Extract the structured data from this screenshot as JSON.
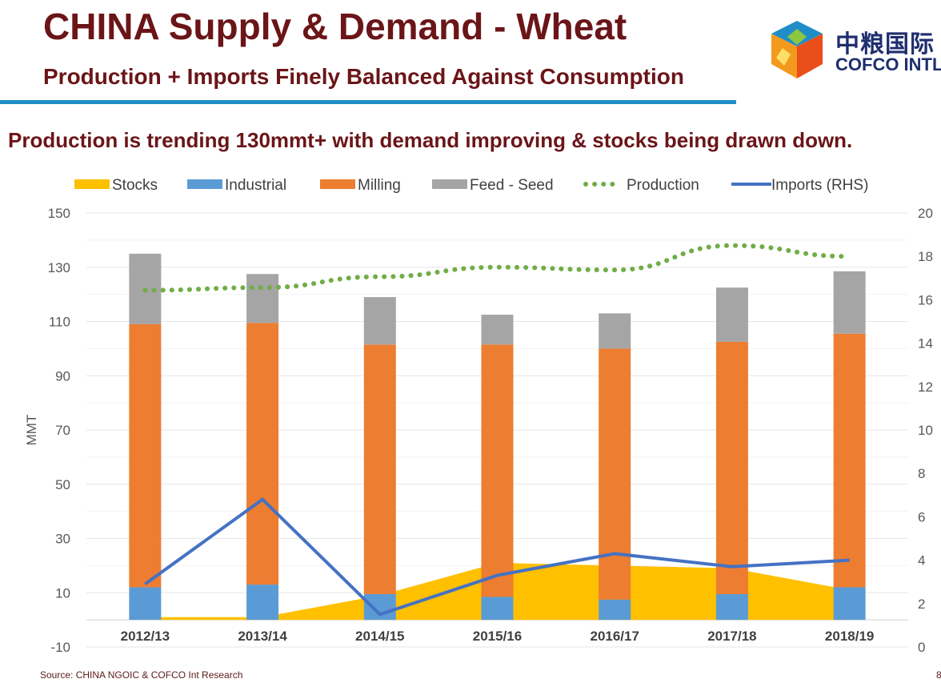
{
  "header": {
    "title": "CHINA Supply & Demand - Wheat",
    "subtitle": "Production + Imports Finely Balanced Against Consumption",
    "logo_cn": "中粮国际",
    "logo_en": "COFCO INTL"
  },
  "headline": "Production is trending 130mmt+ with demand improving & stocks being drawn down.",
  "footer": {
    "source": "Source: CHINA NGOIC & COFCO Int Research",
    "page": "8"
  },
  "colors": {
    "title": "#6b1518",
    "rule": "#1f8ec8",
    "stocks": "#ffc000",
    "industrial": "#5b9bd5",
    "milling": "#ed7d31",
    "feed_seed": "#a5a5a5",
    "production": "#70ad47",
    "imports": "#4472c4"
  },
  "chart_data": {
    "type": "bar",
    "subtype": "stacked-bar with area, dotted line and secondary-axis line",
    "categories": [
      "2012/13",
      "2013/14",
      "2014/15",
      "2015/16",
      "2016/17",
      "2017/18",
      "2018/19"
    ],
    "ylabel": "MMT",
    "ylim": [
      -10,
      150
    ],
    "yticks": [
      -10,
      10,
      30,
      50,
      70,
      90,
      110,
      130,
      150
    ],
    "y2lim": [
      0,
      20
    ],
    "y2ticks": [
      0,
      2,
      4,
      6,
      8,
      10,
      12,
      14,
      16,
      18,
      20
    ],
    "legend_position": "top",
    "gridlines": true,
    "series": [
      {
        "name": "Stocks",
        "kind": "area",
        "axis": "left",
        "values": [
          1,
          1,
          9,
          21,
          20,
          19,
          11
        ]
      },
      {
        "name": "Industrial",
        "kind": "bar",
        "axis": "left",
        "values": [
          12,
          13,
          9.5,
          8.5,
          7.5,
          9.5,
          12
        ]
      },
      {
        "name": "Milling",
        "kind": "bar",
        "axis": "left",
        "values": [
          97,
          96.5,
          92,
          93,
          92.5,
          93,
          93.5
        ]
      },
      {
        "name": "Feed - Seed",
        "kind": "bar",
        "axis": "left",
        "values": [
          26,
          18,
          17.5,
          11,
          13,
          20,
          23
        ]
      },
      {
        "name": "Production",
        "kind": "dotted-line",
        "axis": "left",
        "values": [
          121.5,
          122.5,
          126.5,
          130,
          129,
          138,
          134
        ]
      },
      {
        "name": "Imports (RHS)",
        "kind": "line",
        "axis": "right",
        "values": [
          2.9,
          6.8,
          1.5,
          3.3,
          4.3,
          3.7,
          4.0
        ]
      }
    ]
  }
}
